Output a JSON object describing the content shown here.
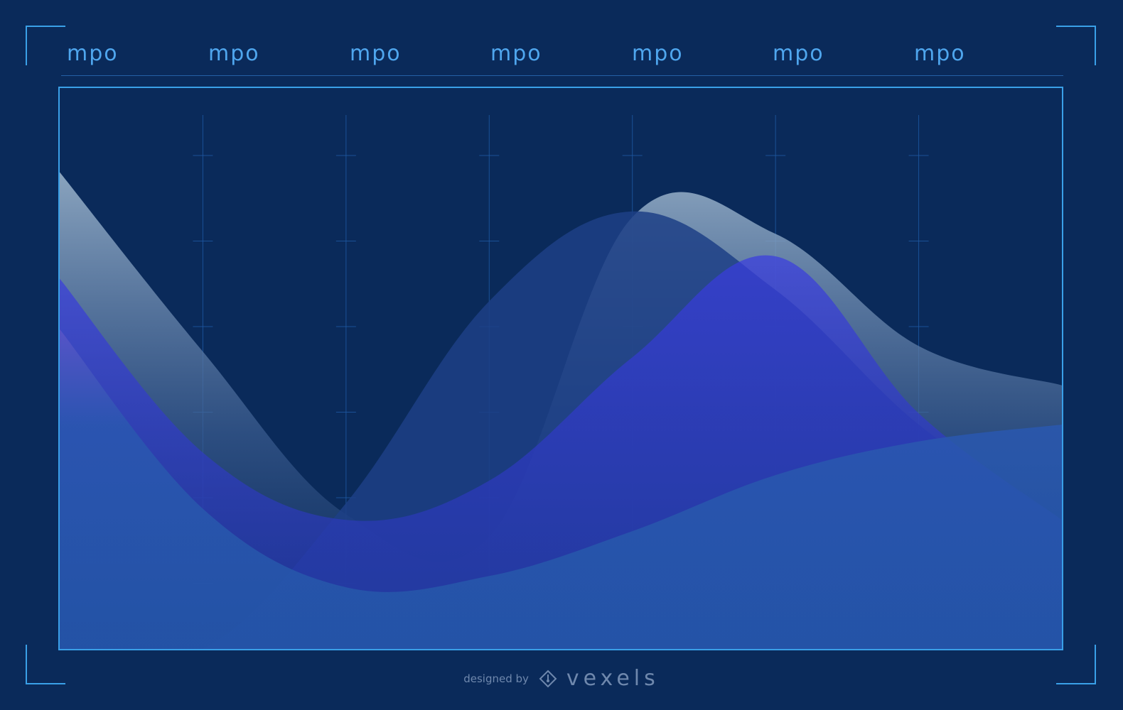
{
  "header": {
    "labels": [
      "mpo",
      "mpo",
      "mpo",
      "mpo",
      "mpo",
      "mpo",
      "mpo"
    ]
  },
  "colors": {
    "background": "#0a2a5a",
    "accent": "#3aa0e8",
    "label": "#4fa6ee",
    "grid": "#1f5aa5",
    "series_a": "#8aa8c4",
    "series_b": "#1d3f86",
    "series_c": "#2d3ac2",
    "series_d": "#2456a8"
  },
  "credit": {
    "prefix": "designed by",
    "brand": "vexels",
    "icon": "vexels-logo-icon"
  },
  "chart_data": {
    "type": "area",
    "x": [
      0,
      1,
      2,
      3,
      4,
      5,
      6,
      7
    ],
    "ylim": [
      0,
      100
    ],
    "grid": true,
    "series": [
      {
        "color": "#8aa8c4",
        "values": [
          85,
          53,
          24,
          20,
          77,
          74,
          54,
          47
        ]
      },
      {
        "color": "#1d3f86",
        "values": [
          0,
          0,
          26,
          62,
          78,
          64,
          40,
          23
        ]
      },
      {
        "color": "#2d3ac2",
        "values": [
          66,
          35,
          23,
          30,
          52,
          70,
          42,
          23
        ]
      },
      {
        "color": "#2456a8",
        "values": [
          57,
          25,
          11,
          13,
          21,
          31,
          37,
          40
        ]
      }
    ]
  }
}
